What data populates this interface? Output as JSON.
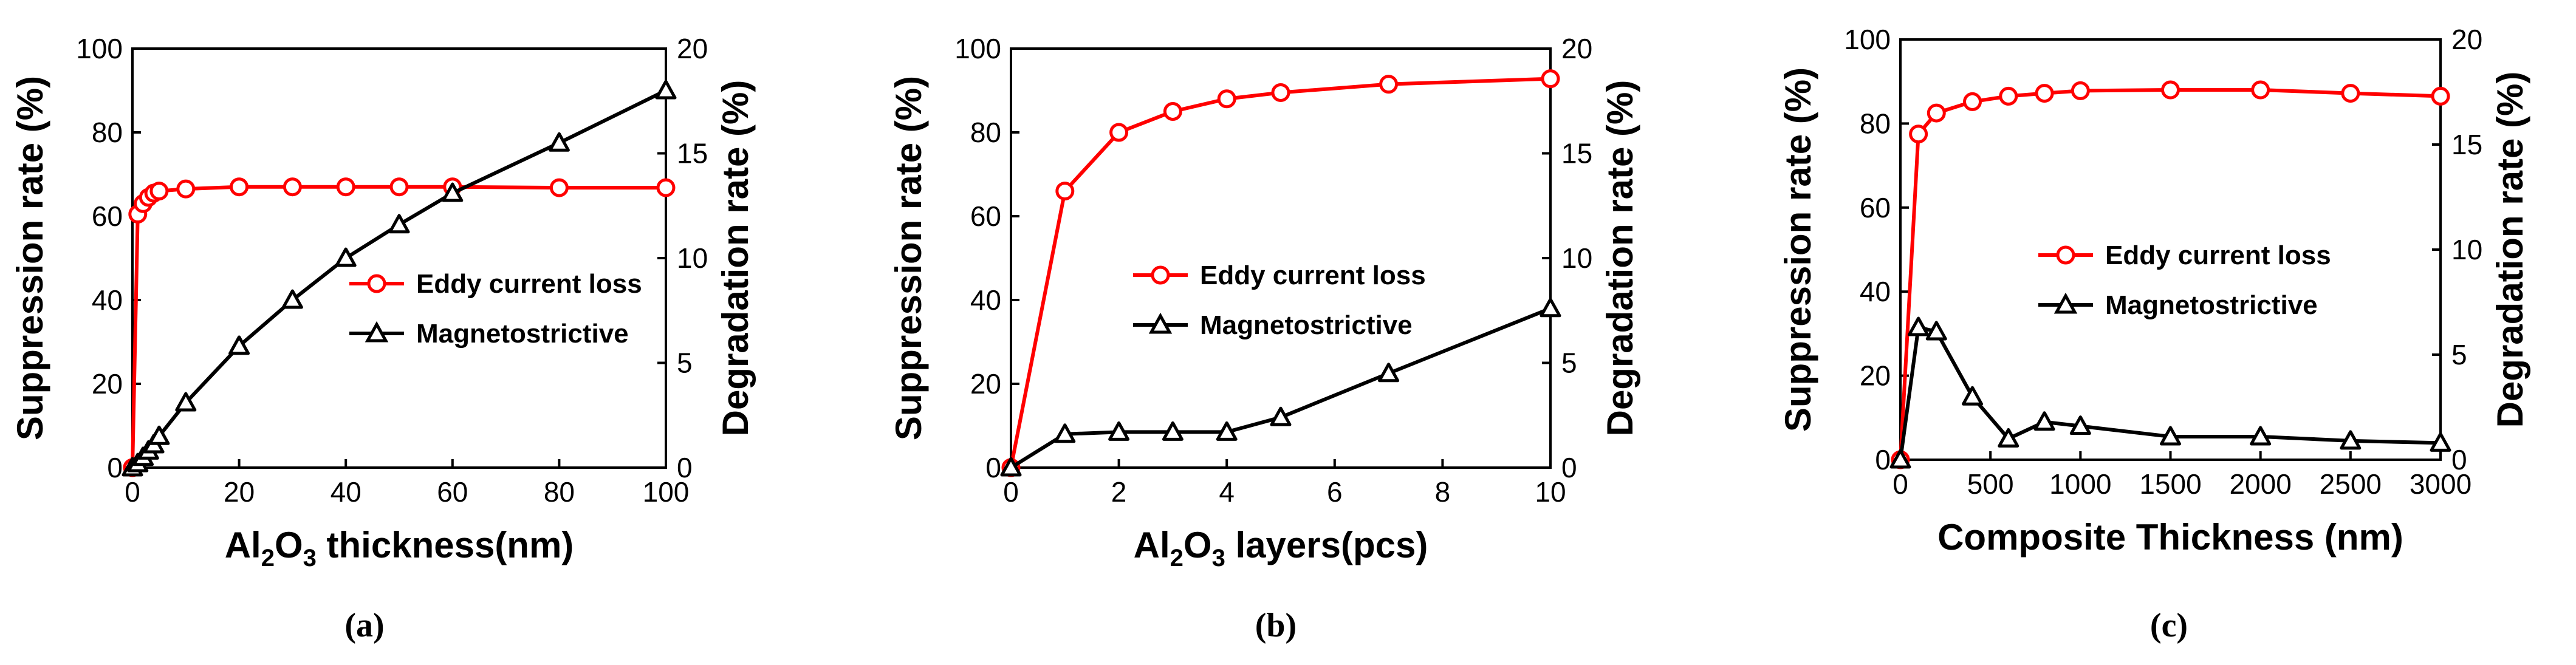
{
  "chart_data": [
    {
      "type": "line",
      "panel_label": "(a)",
      "xlabel_parts": [
        "Al",
        "2",
        "O",
        "3",
        " thickness(nm)"
      ],
      "ylabel_left": "Suppression rate (%)",
      "ylabel_right": "Degradation rate (%)",
      "xlim": [
        0,
        100
      ],
      "xticks": [
        0,
        20,
        40,
        60,
        80,
        100
      ],
      "ylim_left": [
        0,
        100
      ],
      "yticks_left": [
        0,
        20,
        40,
        60,
        80,
        100
      ],
      "ylim_right": [
        0,
        20
      ],
      "yticks_right": [
        0,
        5,
        10,
        15,
        20
      ],
      "legend_position": "center-right",
      "series": [
        {
          "name": "Eddy current loss",
          "axis": "left",
          "color": "#ff0000",
          "marker": "circle",
          "x": [
            0,
            1,
            2,
            3,
            4,
            5,
            10,
            20,
            30,
            40,
            50,
            60,
            80,
            100
          ],
          "y": [
            0,
            60.5,
            63,
            64.5,
            65.5,
            66,
            66.5,
            67,
            67,
            67,
            67,
            67,
            66.8,
            66.8
          ]
        },
        {
          "name": "Magnetostrictive",
          "axis": "right",
          "color": "#000000",
          "marker": "triangle",
          "x": [
            0,
            1,
            2,
            3,
            4,
            5,
            10,
            20,
            30,
            40,
            50,
            60,
            80,
            100
          ],
          "y": [
            0,
            0.2,
            0.5,
            0.8,
            1.1,
            1.5,
            3.1,
            5.8,
            8.0,
            10.0,
            11.6,
            13.1,
            15.5,
            18.0
          ]
        }
      ]
    },
    {
      "type": "line",
      "panel_label": "(b)",
      "xlabel_parts": [
        "Al",
        "2",
        "O",
        "3",
        " layers(pcs)"
      ],
      "ylabel_left": "Suppression rate (%)",
      "ylabel_right": "Degradation rate (%)",
      "xlim": [
        0,
        10
      ],
      "xticks": [
        0,
        2,
        4,
        6,
        8,
        10
      ],
      "ylim_left": [
        0,
        100
      ],
      "yticks_left": [
        0,
        20,
        40,
        60,
        80,
        100
      ],
      "ylim_right": [
        0,
        20
      ],
      "yticks_right": [
        0,
        5,
        10,
        15,
        20
      ],
      "legend_position": "center-right",
      "series": [
        {
          "name": "Eddy current loss",
          "axis": "left",
          "color": "#ff0000",
          "marker": "circle",
          "x": [
            0,
            1,
            2,
            3,
            4,
            5,
            7,
            10
          ],
          "y": [
            0,
            66,
            80,
            85,
            88,
            89.5,
            91.5,
            92.8
          ]
        },
        {
          "name": "Magnetostrictive",
          "axis": "right",
          "color": "#000000",
          "marker": "triangle",
          "x": [
            0,
            1,
            2,
            3,
            4,
            5,
            7,
            10
          ],
          "y": [
            0,
            1.6,
            1.7,
            1.7,
            1.7,
            2.4,
            4.5,
            7.6
          ]
        }
      ]
    },
    {
      "type": "line",
      "panel_label": "(c)",
      "xlabel_parts": [
        "Composite Thickness (nm)"
      ],
      "ylabel_left": "Suppression rate (%)",
      "ylabel_right": "Degradation rate (%)",
      "xlim": [
        0,
        3000
      ],
      "xticks": [
        0,
        500,
        1000,
        1500,
        2000,
        2500,
        3000
      ],
      "ylim_left": [
        0,
        100
      ],
      "yticks_left": [
        0,
        20,
        40,
        60,
        80,
        100
      ],
      "ylim_right": [
        0,
        20
      ],
      "yticks_right": [
        0,
        5,
        10,
        15,
        20
      ],
      "legend_position": "center-right",
      "series": [
        {
          "name": "Eddy current loss",
          "axis": "left",
          "color": "#ff0000",
          "marker": "circle",
          "x": [
            0,
            100,
            200,
            400,
            600,
            800,
            1000,
            1500,
            2000,
            2500,
            3000
          ],
          "y": [
            0,
            77.5,
            82.5,
            85.2,
            86.5,
            87.2,
            87.8,
            88,
            88,
            87.2,
            86.5
          ]
        },
        {
          "name": "Magnetostrictive",
          "axis": "right",
          "color": "#000000",
          "marker": "triangle",
          "x": [
            0,
            100,
            200,
            400,
            600,
            800,
            1000,
            1500,
            2000,
            2500,
            3000
          ],
          "y": [
            0,
            6.3,
            6.1,
            3.0,
            1.0,
            1.8,
            1.6,
            1.1,
            1.1,
            0.9,
            0.8
          ]
        }
      ]
    }
  ]
}
